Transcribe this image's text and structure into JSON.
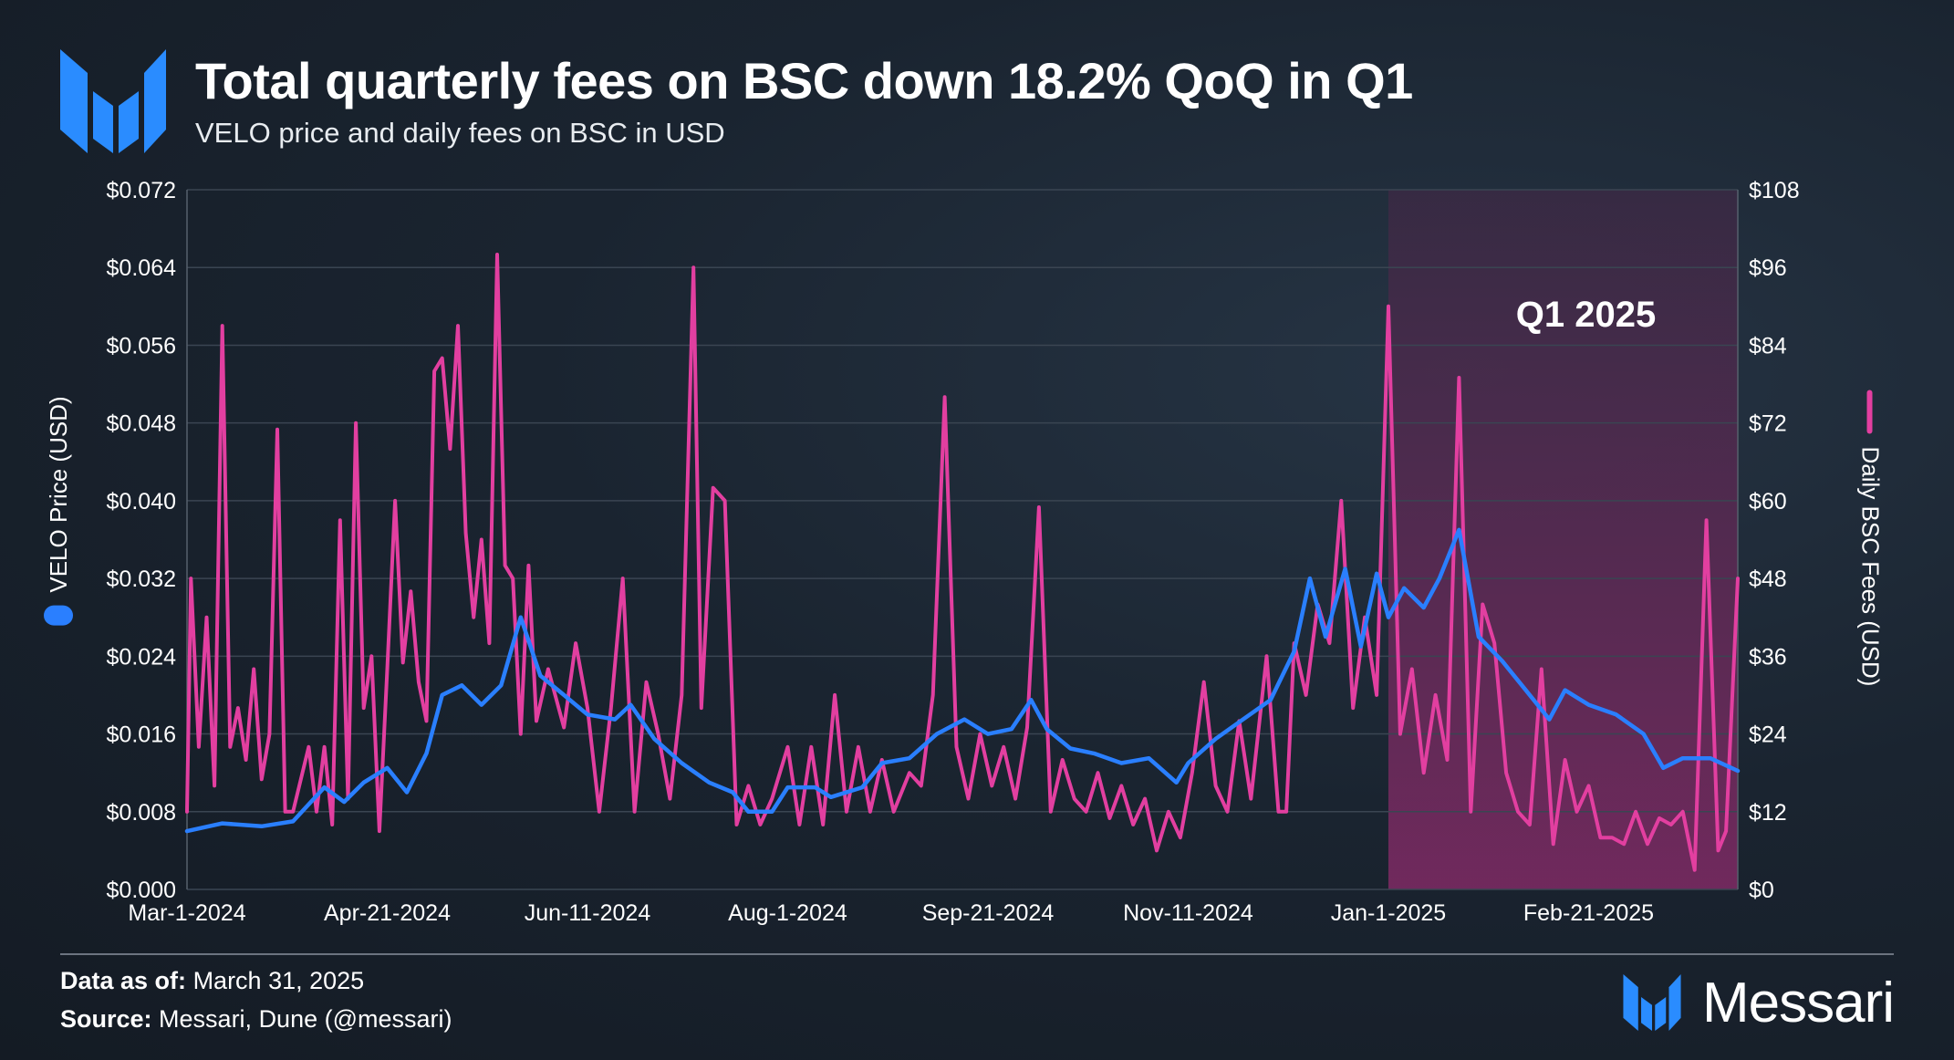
{
  "header": {
    "title": "Total quarterly fees on BSC down 18.2% QoQ in Q1",
    "subtitle": "VELO price and daily fees on BSC in USD"
  },
  "footer": {
    "data_as_of_label": "Data as of:",
    "data_as_of_value": "March 31, 2025",
    "source_label": "Source:",
    "source_value": "Messari, Dune (@messari)",
    "brand": "Messari"
  },
  "colors": {
    "velo": "#2a7fff",
    "fees": "#e23fa0",
    "highlight": "#7a2a62",
    "grid": "#3a4552",
    "text": "#ffffff"
  },
  "chart_data": {
    "type": "line",
    "title": "Total quarterly fees on BSC down 18.2% QoQ in Q1",
    "subtitle": "VELO price and daily fees on BSC in USD",
    "x_start": "Mar-1-2024",
    "x_end": "Mar-31-2025",
    "x_ticks": [
      "Mar-1-2024",
      "Apr-21-2024",
      "Jun-11-2024",
      "Aug-1-2024",
      "Sep-21-2024",
      "Nov-11-2024",
      "Jan-1-2025",
      "Feb-21-2025"
    ],
    "y_left": {
      "label": "VELO Price (USD)",
      "min": 0,
      "max": 0.072,
      "ticks": [
        "$0.000",
        "$0.008",
        "$0.016",
        "$0.024",
        "$0.032",
        "$0.040",
        "$0.048",
        "$0.056",
        "$0.064",
        "$0.072"
      ]
    },
    "y_right": {
      "label": "Daily BSC Fees (USD)",
      "min": 0,
      "max": 108,
      "ticks": [
        "$0",
        "$12",
        "$24",
        "$36",
        "$48",
        "$60",
        "$72",
        "$84",
        "$96",
        "$108"
      ]
    },
    "highlight": {
      "label": "Q1 2025",
      "start": "Jan-1-2025",
      "end": "Mar-31-2025"
    },
    "grid": true,
    "series": [
      {
        "name": "VELO Price (USD)",
        "axis": "left",
        "color": "#2a7fff",
        "points": [
          [
            "2024-03-01",
            0.006
          ],
          [
            "2024-03-10",
            0.0068
          ],
          [
            "2024-03-20",
            0.0065
          ],
          [
            "2024-03-28",
            0.007
          ],
          [
            "2024-04-05",
            0.0105
          ],
          [
            "2024-04-10",
            0.009
          ],
          [
            "2024-04-15",
            0.011
          ],
          [
            "2024-04-21",
            0.0125
          ],
          [
            "2024-04-26",
            0.01
          ],
          [
            "2024-05-01",
            0.014
          ],
          [
            "2024-05-05",
            0.02
          ],
          [
            "2024-05-10",
            0.021
          ],
          [
            "2024-05-15",
            0.019
          ],
          [
            "2024-05-20",
            0.021
          ],
          [
            "2024-05-25",
            0.028
          ],
          [
            "2024-05-30",
            0.022
          ],
          [
            "2024-06-05",
            0.02
          ],
          [
            "2024-06-11",
            0.018
          ],
          [
            "2024-06-18",
            0.0175
          ],
          [
            "2024-06-22",
            0.019
          ],
          [
            "2024-06-28",
            0.0155
          ],
          [
            "2024-07-05",
            0.013
          ],
          [
            "2024-07-12",
            0.011
          ],
          [
            "2024-07-18",
            0.01
          ],
          [
            "2024-07-22",
            0.008
          ],
          [
            "2024-07-28",
            0.008
          ],
          [
            "2024-08-01",
            0.0105
          ],
          [
            "2024-08-08",
            0.0105
          ],
          [
            "2024-08-12",
            0.0095
          ],
          [
            "2024-08-20",
            0.0105
          ],
          [
            "2024-08-25",
            0.013
          ],
          [
            "2024-09-01",
            0.0135
          ],
          [
            "2024-09-08",
            0.016
          ],
          [
            "2024-09-15",
            0.0175
          ],
          [
            "2024-09-21",
            0.016
          ],
          [
            "2024-09-27",
            0.0165
          ],
          [
            "2024-10-02",
            0.0195
          ],
          [
            "2024-10-06",
            0.0165
          ],
          [
            "2024-10-12",
            0.0145
          ],
          [
            "2024-10-18",
            0.014
          ],
          [
            "2024-10-25",
            0.013
          ],
          [
            "2024-11-01",
            0.0135
          ],
          [
            "2024-11-08",
            0.011
          ],
          [
            "2024-11-11",
            0.013
          ],
          [
            "2024-11-18",
            0.0155
          ],
          [
            "2024-11-25",
            0.0175
          ],
          [
            "2024-12-02",
            0.0195
          ],
          [
            "2024-12-08",
            0.0245
          ],
          [
            "2024-12-12",
            0.032
          ],
          [
            "2024-12-16",
            0.026
          ],
          [
            "2024-12-21",
            0.033
          ],
          [
            "2024-12-25",
            0.025
          ],
          [
            "2024-12-29",
            0.0325
          ],
          [
            "2025-01-01",
            0.028
          ],
          [
            "2025-01-05",
            0.031
          ],
          [
            "2025-01-10",
            0.029
          ],
          [
            "2025-01-14",
            0.032
          ],
          [
            "2025-01-19",
            0.037
          ],
          [
            "2025-01-24",
            0.026
          ],
          [
            "2025-01-30",
            0.0235
          ],
          [
            "2025-02-05",
            0.0205
          ],
          [
            "2025-02-11",
            0.0175
          ],
          [
            "2025-02-15",
            0.0205
          ],
          [
            "2025-02-21",
            0.019
          ],
          [
            "2025-02-28",
            0.018
          ],
          [
            "2025-03-07",
            0.016
          ],
          [
            "2025-03-12",
            0.0125
          ],
          [
            "2025-03-17",
            0.0135
          ],
          [
            "2025-03-24",
            0.0135
          ],
          [
            "2025-03-31",
            0.0122
          ]
        ]
      },
      {
        "name": "Daily BSC Fees (USD)",
        "axis": "right",
        "color": "#e23fa0",
        "points": [
          [
            "2024-03-01",
            12
          ],
          [
            "2024-03-02",
            48
          ],
          [
            "2024-03-04",
            22
          ],
          [
            "2024-03-06",
            42
          ],
          [
            "2024-03-08",
            16
          ],
          [
            "2024-03-10",
            87
          ],
          [
            "2024-03-12",
            22
          ],
          [
            "2024-03-14",
            28
          ],
          [
            "2024-03-16",
            20
          ],
          [
            "2024-03-18",
            34
          ],
          [
            "2024-03-20",
            17
          ],
          [
            "2024-03-22",
            24
          ],
          [
            "2024-03-24",
            71
          ],
          [
            "2024-03-26",
            12
          ],
          [
            "2024-03-28",
            12
          ],
          [
            "2024-04-01",
            22
          ],
          [
            "2024-04-03",
            12
          ],
          [
            "2024-04-05",
            22
          ],
          [
            "2024-04-07",
            10
          ],
          [
            "2024-04-09",
            57
          ],
          [
            "2024-04-11",
            14
          ],
          [
            "2024-04-13",
            72
          ],
          [
            "2024-04-15",
            28
          ],
          [
            "2024-04-17",
            36
          ],
          [
            "2024-04-19",
            9
          ],
          [
            "2024-04-21",
            34
          ],
          [
            "2024-04-23",
            60
          ],
          [
            "2024-04-25",
            35
          ],
          [
            "2024-04-27",
            46
          ],
          [
            "2024-04-29",
            32
          ],
          [
            "2024-05-01",
            26
          ],
          [
            "2024-05-03",
            80
          ],
          [
            "2024-05-05",
            82
          ],
          [
            "2024-05-07",
            68
          ],
          [
            "2024-05-09",
            87
          ],
          [
            "2024-05-11",
            55
          ],
          [
            "2024-05-13",
            42
          ],
          [
            "2024-05-15",
            54
          ],
          [
            "2024-05-17",
            38
          ],
          [
            "2024-05-19",
            98
          ],
          [
            "2024-05-21",
            50
          ],
          [
            "2024-05-23",
            48
          ],
          [
            "2024-05-25",
            24
          ],
          [
            "2024-05-27",
            50
          ],
          [
            "2024-05-29",
            26
          ],
          [
            "2024-06-01",
            34
          ],
          [
            "2024-06-05",
            25
          ],
          [
            "2024-06-08",
            38
          ],
          [
            "2024-06-11",
            28
          ],
          [
            "2024-06-14",
            12
          ],
          [
            "2024-06-17",
            28
          ],
          [
            "2024-06-20",
            48
          ],
          [
            "2024-06-23",
            12
          ],
          [
            "2024-06-26",
            32
          ],
          [
            "2024-06-29",
            24
          ],
          [
            "2024-07-02",
            14
          ],
          [
            "2024-07-05",
            30
          ],
          [
            "2024-07-08",
            96
          ],
          [
            "2024-07-10",
            28
          ],
          [
            "2024-07-13",
            62
          ],
          [
            "2024-07-16",
            60
          ],
          [
            "2024-07-19",
            10
          ],
          [
            "2024-07-22",
            16
          ],
          [
            "2024-07-25",
            10
          ],
          [
            "2024-07-28",
            14
          ],
          [
            "2024-08-01",
            22
          ],
          [
            "2024-08-04",
            10
          ],
          [
            "2024-08-07",
            22
          ],
          [
            "2024-08-10",
            10
          ],
          [
            "2024-08-13",
            30
          ],
          [
            "2024-08-16",
            12
          ],
          [
            "2024-08-19",
            22
          ],
          [
            "2024-08-22",
            12
          ],
          [
            "2024-08-25",
            20
          ],
          [
            "2024-08-28",
            12
          ],
          [
            "2024-09-01",
            18
          ],
          [
            "2024-09-04",
            16
          ],
          [
            "2024-09-07",
            30
          ],
          [
            "2024-09-10",
            76
          ],
          [
            "2024-09-13",
            22
          ],
          [
            "2024-09-16",
            14
          ],
          [
            "2024-09-19",
            24
          ],
          [
            "2024-09-22",
            16
          ],
          [
            "2024-09-25",
            22
          ],
          [
            "2024-09-28",
            14
          ],
          [
            "2024-10-01",
            25
          ],
          [
            "2024-10-04",
            59
          ],
          [
            "2024-10-07",
            12
          ],
          [
            "2024-10-10",
            20
          ],
          [
            "2024-10-13",
            14
          ],
          [
            "2024-10-16",
            12
          ],
          [
            "2024-10-19",
            18
          ],
          [
            "2024-10-22",
            11
          ],
          [
            "2024-10-25",
            16
          ],
          [
            "2024-10-28",
            10
          ],
          [
            "2024-10-31",
            14
          ],
          [
            "2024-11-03",
            6
          ],
          [
            "2024-11-06",
            12
          ],
          [
            "2024-11-09",
            8
          ],
          [
            "2024-11-12",
            18
          ],
          [
            "2024-11-15",
            32
          ],
          [
            "2024-11-18",
            16
          ],
          [
            "2024-11-21",
            12
          ],
          [
            "2024-11-24",
            26
          ],
          [
            "2024-11-27",
            14
          ],
          [
            "2024-12-01",
            36
          ],
          [
            "2024-12-04",
            12
          ],
          [
            "2024-12-06",
            12
          ],
          [
            "2024-12-08",
            38
          ],
          [
            "2024-12-11",
            30
          ],
          [
            "2024-12-14",
            44
          ],
          [
            "2024-12-17",
            38
          ],
          [
            "2024-12-20",
            60
          ],
          [
            "2024-12-23",
            28
          ],
          [
            "2024-12-26",
            42
          ],
          [
            "2024-12-29",
            30
          ],
          [
            "2025-01-01",
            90
          ],
          [
            "2025-01-04",
            24
          ],
          [
            "2025-01-07",
            34
          ],
          [
            "2025-01-10",
            18
          ],
          [
            "2025-01-13",
            30
          ],
          [
            "2025-01-16",
            20
          ],
          [
            "2025-01-19",
            79
          ],
          [
            "2025-01-22",
            12
          ],
          [
            "2025-01-25",
            44
          ],
          [
            "2025-01-28",
            38
          ],
          [
            "2025-01-31",
            18
          ],
          [
            "2025-02-03",
            12
          ],
          [
            "2025-02-06",
            10
          ],
          [
            "2025-02-09",
            34
          ],
          [
            "2025-02-12",
            7
          ],
          [
            "2025-02-15",
            20
          ],
          [
            "2025-02-18",
            12
          ],
          [
            "2025-02-21",
            16
          ],
          [
            "2025-02-24",
            8
          ],
          [
            "2025-02-27",
            8
          ],
          [
            "2025-03-02",
            7
          ],
          [
            "2025-03-05",
            12
          ],
          [
            "2025-03-08",
            7
          ],
          [
            "2025-03-11",
            11
          ],
          [
            "2025-03-14",
            10
          ],
          [
            "2025-03-17",
            12
          ],
          [
            "2025-03-20",
            3
          ],
          [
            "2025-03-23",
            57
          ],
          [
            "2025-03-26",
            6
          ],
          [
            "2025-03-28",
            9
          ],
          [
            "2025-03-31",
            48
          ]
        ]
      }
    ]
  }
}
